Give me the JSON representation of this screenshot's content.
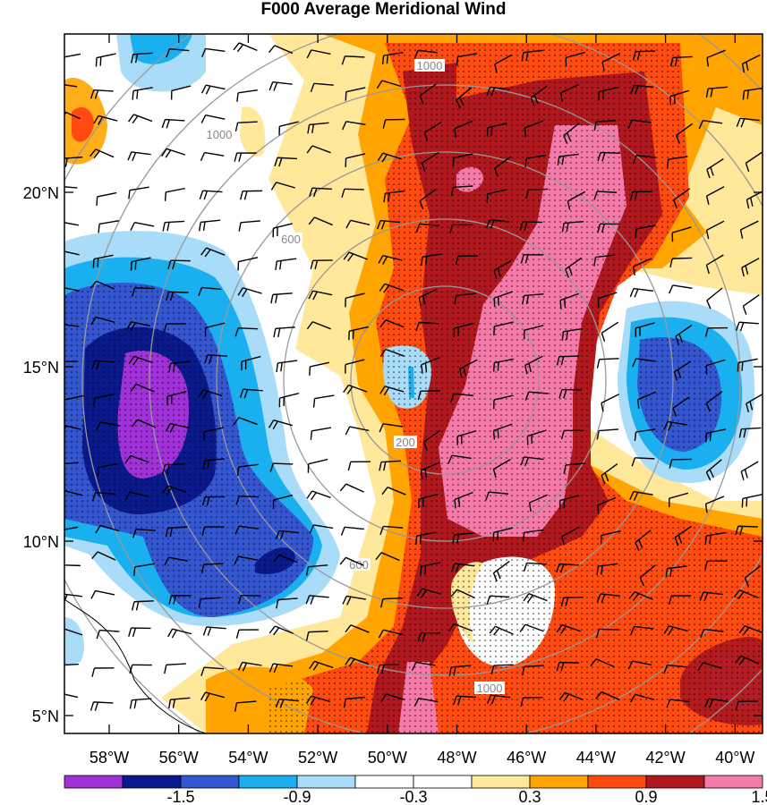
{
  "title": "F000 Average Meridional Wind",
  "lat_labels": [
    "20°N",
    "15°N",
    "10°N",
    "5°N"
  ],
  "lon_labels": [
    "58°W",
    "56°W",
    "54°W",
    "52°W",
    "50°W",
    "48°W",
    "46°W",
    "44°W",
    "42°W",
    "40°W"
  ],
  "ring_labels": [
    "200",
    "600",
    "1000"
  ],
  "colorbar": {
    "colors": [
      "#a030d8",
      "#0a1a8c",
      "#3456d0",
      "#1ab0f0",
      "#a8dcf8",
      "#ffffff",
      "#ffffff",
      "#ffe89a",
      "#ffa400",
      "#ff4a10",
      "#b0181e",
      "#f57aaa"
    ],
    "labels": [
      "-1.5",
      "-0.9",
      "-0.3",
      "0.3",
      "0.9",
      "1.5"
    ]
  }
}
